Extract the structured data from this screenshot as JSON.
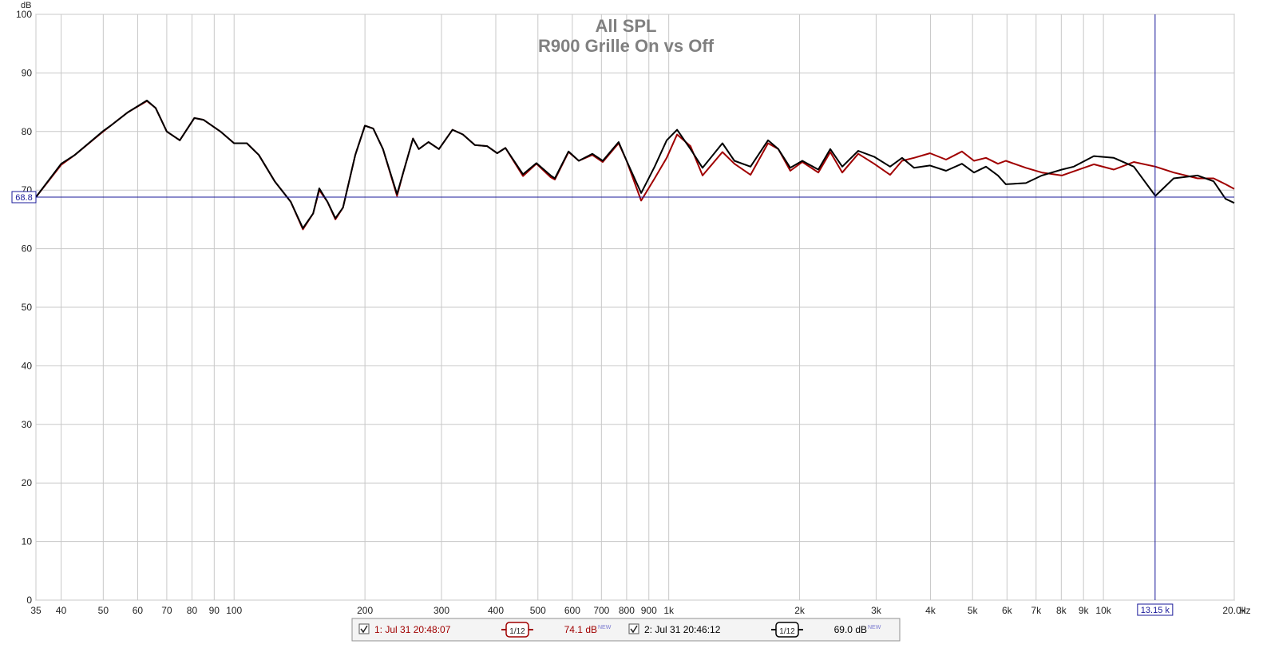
{
  "chart_data": {
    "type": "line",
    "title": "All SPL",
    "subtitle": "R900 Grille On vs Off",
    "y_unit": "dB",
    "x_unit": "Hz",
    "log_x": true,
    "grid": true,
    "xlim": [
      35,
      20000
    ],
    "ylim": [
      0,
      100
    ],
    "yticks": [
      0,
      10,
      20,
      30,
      40,
      50,
      60,
      70,
      80,
      90,
      100
    ],
    "xticks": [
      35,
      40,
      50,
      60,
      70,
      80,
      90,
      100,
      200,
      300,
      400,
      500,
      600,
      700,
      800,
      900,
      {
        "value": 1000,
        "label": "1k"
      },
      {
        "value": 2000,
        "label": "2k"
      },
      {
        "value": 3000,
        "label": "3k"
      },
      {
        "value": 4000,
        "label": "4k"
      },
      {
        "value": 5000,
        "label": "5k"
      },
      {
        "value": 6000,
        "label": "6k"
      },
      {
        "value": 7000,
        "label": "7k"
      },
      {
        "value": 8000,
        "label": "8k"
      },
      {
        "value": 9000,
        "label": "9k"
      },
      {
        "value": 10000,
        "label": "10k"
      },
      {
        "value": 20000,
        "label": "20.0k"
      }
    ],
    "x": [
      35,
      40,
      43,
      50,
      52,
      57,
      63,
      66,
      70,
      75,
      81,
      85,
      93,
      100,
      107,
      114,
      124,
      135,
      144,
      152,
      157,
      164,
      171,
      178,
      190,
      200,
      209,
      220,
      237,
      245,
      258,
      266,
      280,
      296,
      318,
      336,
      358,
      382,
      403,
      421,
      462,
      496,
      535,
      547,
      588,
      621,
      667,
      705,
      767,
      800,
      864,
      928,
      989,
      1045,
      1122,
      1196,
      1329,
      1416,
      1542,
      1692,
      1787,
      1904,
      2029,
      2208,
      2353,
      2507,
      2728,
      2968,
      3230,
      3442,
      3667,
      3991,
      4344,
      4727,
      5037,
      5367,
      5719,
      5965,
      6632,
      7218,
      8022,
      8548,
      9503,
      10566,
      11746,
      13167,
      14511,
      16474,
      17928,
      19102,
      20000
    ],
    "series": [
      {
        "name": "1: Jul 31 20:48:07",
        "color": "#a00000",
        "smoothing": "1/12",
        "level": "74.1 dB",
        "badge": "NEW",
        "values": [
          68.8,
          74.3,
          76,
          80,
          81,
          83.3,
          85.2,
          84,
          80,
          78.5,
          82.3,
          82,
          80,
          78,
          78,
          76,
          71.5,
          68,
          63.3,
          66,
          70,
          68,
          65,
          67,
          76,
          81,
          80.5,
          77,
          69,
          73,
          78.8,
          77,
          78.2,
          77,
          80.3,
          79.5,
          77.7,
          77.5,
          76.3,
          77.2,
          72.4,
          74.5,
          72.2,
          71.8,
          76.5,
          75,
          76,
          74.8,
          78,
          75,
          68.2,
          72,
          75.5,
          79.5,
          77.5,
          72.5,
          76.5,
          74.5,
          72.6,
          78,
          77,
          73.3,
          74.8,
          73,
          76.5,
          73,
          76.2,
          74.5,
          72.6,
          75,
          75.5,
          76.3,
          75.2,
          76.6,
          75,
          75.5,
          74.5,
          75,
          73.8,
          73,
          72.5,
          73.2,
          74.4,
          73.5,
          74.8,
          74,
          73,
          72,
          72,
          71,
          70.2
        ]
      },
      {
        "name": "2: Jul 31 20:46:12",
        "color": "#000000",
        "smoothing": "1/12",
        "level": "69.0 dB",
        "badge": "NEW",
        "values": [
          68.8,
          74.5,
          76,
          80.1,
          81,
          83.3,
          85.3,
          84,
          80,
          78.5,
          82.3,
          82,
          80,
          78,
          78,
          76,
          71.5,
          68,
          63.5,
          66,
          70.3,
          68,
          65.2,
          67,
          76,
          81,
          80.5,
          77,
          69.3,
          73,
          78.8,
          77,
          78.2,
          77,
          80.3,
          79.5,
          77.7,
          77.5,
          76.3,
          77.2,
          72.7,
          74.6,
          72.5,
          72,
          76.6,
          75,
          76.2,
          75,
          78.2,
          75,
          69.5,
          74,
          78.5,
          80.3,
          77,
          73.8,
          78,
          75,
          74,
          78.5,
          77,
          73.8,
          75,
          73.5,
          77,
          74,
          76.7,
          75.7,
          74,
          75.5,
          73.8,
          74.2,
          73.3,
          74.5,
          73,
          74,
          72.5,
          71,
          71.2,
          72.5,
          73.5,
          74,
          75.8,
          75.5,
          74,
          69,
          72,
          72.5,
          71.5,
          68.5,
          67.8
        ]
      }
    ],
    "cursor": {
      "x": {
        "value": 13150,
        "label": "13.15 k"
      },
      "y": 68.8
    }
  }
}
